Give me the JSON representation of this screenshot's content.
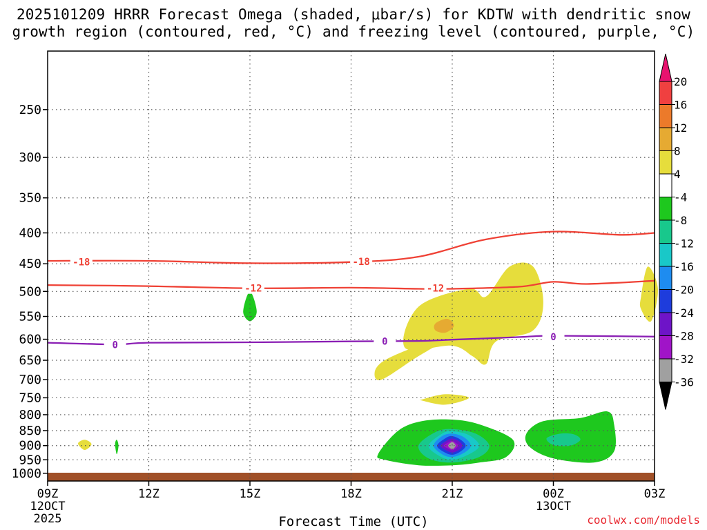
{
  "chart_data": {
    "type": "heatmap",
    "title": "2025101209 HRRR Forecast Omega (shaded, μbar/s) for KDTW with dendritic snow",
    "subtitle": "growth region (contoured, red, °C) and freezing level (contoured, purple, °C)",
    "xlabel": "Forecast Time (UTC)",
    "ylabel": "",
    "y_scale": "log-pressure (inverted)",
    "grid": "dotted",
    "x_ticks": [
      {
        "label": "09Z",
        "sub": "12OCT",
        "sub2": "2025",
        "hour": 0
      },
      {
        "label": "12Z",
        "sub": "",
        "sub2": "",
        "hour": 3
      },
      {
        "label": "15Z",
        "sub": "",
        "sub2": "",
        "hour": 6
      },
      {
        "label": "18Z",
        "sub": "",
        "sub2": "",
        "hour": 9
      },
      {
        "label": "21Z",
        "sub": "",
        "sub2": "",
        "hour": 12
      },
      {
        "label": "00Z",
        "sub": "13OCT",
        "sub2": "",
        "hour": 15
      },
      {
        "label": "03Z",
        "sub": "",
        "sub2": "",
        "hour": 18
      }
    ],
    "x_range_hours": [
      0,
      18
    ],
    "y_ticks": [
      250,
      300,
      350,
      400,
      450,
      500,
      550,
      600,
      650,
      700,
      750,
      800,
      850,
      900,
      950,
      1000
    ],
    "y_range_hpa": [
      200,
      1030
    ],
    "colorbar": {
      "labels": [
        "20",
        "16",
        "12",
        "8",
        "4",
        "-4",
        "-8",
        "-12",
        "-16",
        "-20",
        "-24",
        "-28",
        "-32",
        "-36"
      ],
      "colors": [
        "#e8126f",
        "#f04040",
        "#ec7a2a",
        "#e6aa32",
        "#e6dd3c",
        "#ffffff",
        "#1ec81e",
        "#18c88c",
        "#19c8c8",
        "#1e8cf0",
        "#1e3cdc",
        "#6e14c8",
        "#a014c8",
        "#a0a0a0",
        "#000000"
      ]
    },
    "contours": [
      {
        "name": "-18",
        "color": "#ef4135",
        "label": "-18",
        "points": [
          [
            0,
            445
          ],
          [
            3,
            445
          ],
          [
            6,
            449
          ],
          [
            9,
            447
          ],
          [
            11,
            438
          ],
          [
            13,
            410
          ],
          [
            15,
            398
          ],
          [
            17,
            403
          ],
          [
            18,
            400
          ]
        ],
        "labels_at": [
          [
            1,
            447
          ],
          [
            9.3,
            446
          ]
        ]
      },
      {
        "name": "-12",
        "color": "#ef4135",
        "label": "-12",
        "points": [
          [
            0,
            488
          ],
          [
            3,
            490
          ],
          [
            6,
            494
          ],
          [
            9,
            493
          ],
          [
            11,
            495
          ],
          [
            12,
            495
          ],
          [
            14,
            491
          ],
          [
            15,
            482
          ],
          [
            16,
            486
          ],
          [
            18,
            480
          ]
        ],
        "labels_at": [
          [
            6.1,
            494
          ],
          [
            11.5,
            494
          ]
        ]
      },
      {
        "name": "0",
        "color": "#8a1eb4",
        "label": "0",
        "points": [
          [
            0,
            608
          ],
          [
            2,
            612
          ],
          [
            3,
            608
          ],
          [
            6,
            607
          ],
          [
            9,
            605
          ],
          [
            11,
            604
          ],
          [
            12,
            601
          ],
          [
            14,
            595
          ],
          [
            15,
            592
          ],
          [
            18,
            594
          ]
        ],
        "labels_at": [
          [
            2,
            613
          ],
          [
            10,
            605
          ],
          [
            15,
            594
          ]
        ]
      }
    ],
    "shaded_regions": [
      {
        "color": "#e6dd3c",
        "points": [
          [
            0.9,
            893
          ],
          [
            1.1,
            880
          ],
          [
            1.3,
            895
          ],
          [
            1.1,
            915
          ]
        ]
      },
      {
        "color": "#1ec81e",
        "points": [
          [
            2,
            895
          ],
          [
            2.05,
            880
          ],
          [
            2.1,
            900
          ],
          [
            2.05,
            930
          ]
        ]
      },
      {
        "color": "#1ec81e",
        "points": [
          [
            5.8,
            540
          ],
          [
            6,
            500
          ],
          [
            6.2,
            540
          ],
          [
            6,
            560
          ]
        ]
      },
      {
        "color": "#e6dd3c",
        "points": [
          [
            9.7,
            680
          ],
          [
            10,
            650
          ],
          [
            11,
            615
          ],
          [
            11.8,
            600
          ],
          [
            10.9,
            645
          ],
          [
            9.9,
            700
          ]
        ]
      },
      {
        "color": "#e6dd3c",
        "points": [
          [
            10.6,
            620
          ],
          [
            11,
            530
          ],
          [
            12.5,
            495
          ],
          [
            13,
            510
          ],
          [
            13.7,
            455
          ],
          [
            14.4,
            455
          ],
          [
            14.7,
            520
          ],
          [
            14.4,
            580
          ],
          [
            13.3,
            605
          ],
          [
            13,
            660
          ],
          [
            12.6,
            640
          ],
          [
            12,
            615
          ]
        ]
      },
      {
        "color": "#e6aa32",
        "points": [
          [
            11.5,
            565
          ],
          [
            11.85,
            555
          ],
          [
            12.05,
            570
          ],
          [
            11.8,
            585
          ],
          [
            11.5,
            580
          ]
        ]
      },
      {
        "color": "#e6dd3c",
        "points": [
          [
            17.6,
            510
          ],
          [
            17.8,
            455
          ],
          [
            18.1,
            495
          ],
          [
            17.9,
            560
          ],
          [
            17.6,
            535
          ]
        ]
      },
      {
        "color": "#e6dd3c",
        "points": [
          [
            11.1,
            755
          ],
          [
            11.8,
            740
          ],
          [
            12.5,
            750
          ],
          [
            11.8,
            770
          ],
          [
            11.1,
            758
          ]
        ]
      },
      {
        "color": "#1ec81e",
        "points": [
          [
            9.8,
            930
          ],
          [
            10.4,
            850
          ],
          [
            11.1,
            820
          ],
          [
            12.0,
            815
          ],
          [
            12.8,
            830
          ],
          [
            13.8,
            880
          ],
          [
            13.6,
            940
          ],
          [
            12.8,
            960
          ],
          [
            12.0,
            970
          ],
          [
            11,
            970
          ],
          [
            10,
            950
          ]
        ]
      },
      {
        "color": "#18c88c",
        "points": [
          [
            11,
            900
          ],
          [
            11.5,
            855
          ],
          [
            12,
            845
          ],
          [
            12.7,
            860
          ],
          [
            13.1,
            900
          ],
          [
            12.8,
            940
          ],
          [
            12,
            960
          ],
          [
            11.3,
            945
          ]
        ]
      },
      {
        "color": "#19c8c8",
        "points": [
          [
            11.3,
            900
          ],
          [
            11.7,
            860
          ],
          [
            12,
            852
          ],
          [
            12.5,
            865
          ],
          [
            12.8,
            900
          ],
          [
            12.5,
            930
          ],
          [
            12,
            950
          ],
          [
            11.6,
            935
          ]
        ]
      },
      {
        "color": "#1e8cf0",
        "points": [
          [
            11.45,
            900
          ],
          [
            11.7,
            868
          ],
          [
            12,
            860
          ],
          [
            12.35,
            872
          ],
          [
            12.55,
            900
          ],
          [
            12.35,
            925
          ],
          [
            12,
            940
          ],
          [
            11.7,
            930
          ]
        ]
      },
      {
        "color": "#1e3cdc",
        "points": [
          [
            11.55,
            900
          ],
          [
            11.8,
            875
          ],
          [
            12,
            868
          ],
          [
            12.25,
            880
          ],
          [
            12.4,
            900
          ],
          [
            12.25,
            920
          ],
          [
            12,
            932
          ],
          [
            11.75,
            922
          ]
        ]
      },
      {
        "color": "#6e14c8",
        "points": [
          [
            11.65,
            900
          ],
          [
            11.85,
            882
          ],
          [
            12,
            876
          ],
          [
            12.2,
            885
          ],
          [
            12.3,
            900
          ],
          [
            12.2,
            915
          ],
          [
            12,
            924
          ],
          [
            11.8,
            915
          ]
        ]
      },
      {
        "color": "#a014c8",
        "points": [
          [
            11.75,
            900
          ],
          [
            11.9,
            888
          ],
          [
            12,
            884
          ],
          [
            12.12,
            892
          ],
          [
            12.18,
            900
          ],
          [
            12.1,
            910
          ],
          [
            12,
            916
          ],
          [
            11.88,
            910
          ]
        ]
      },
      {
        "color": "#a0a0a0",
        "points": [
          [
            11.88,
            900
          ],
          [
            12,
            888
          ],
          [
            12.1,
            900
          ],
          [
            12,
            912
          ]
        ]
      },
      {
        "color": "#1ec81e",
        "points": [
          [
            14.2,
            860
          ],
          [
            14.7,
            820
          ],
          [
            15.8,
            810
          ],
          [
            16.6,
            790
          ],
          [
            16.8,
            830
          ],
          [
            16.8,
            920
          ],
          [
            16.2,
            960
          ],
          [
            15,
            945
          ],
          [
            14.3,
            905
          ]
        ]
      },
      {
        "color": "#18c88c",
        "points": [
          [
            14.8,
            875
          ],
          [
            15.2,
            860
          ],
          [
            15.6,
            862
          ],
          [
            15.8,
            880
          ],
          [
            15.5,
            900
          ],
          [
            15.0,
            898
          ]
        ]
      }
    ],
    "ground": {
      "color": "#a05028",
      "top_hpa": 998
    }
  },
  "credit": "coolwx.com/models"
}
